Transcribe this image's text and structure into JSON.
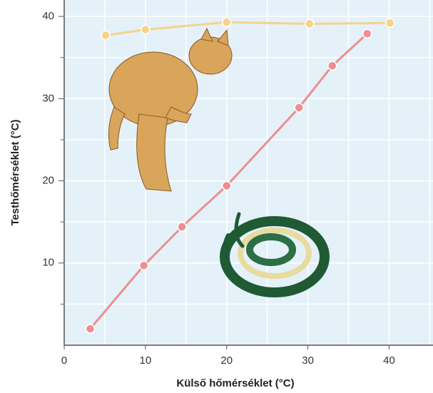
{
  "chart_data": {
    "type": "line",
    "x_label": "Külső hőmérséklet (°C)",
    "y_label": "Testhőmérséklet (°C)",
    "xlim": [
      0,
      45.4
    ],
    "ylim": [
      0,
      42
    ],
    "xticks": [
      0,
      10,
      20,
      30,
      40
    ],
    "yticks": [
      10,
      20,
      30,
      40
    ],
    "grid": true,
    "series": [
      {
        "color": "#f5d38a",
        "x": [
          5.1,
          10,
          20,
          30.2,
          40.1
        ],
        "values": [
          37.7,
          38.4,
          39.3,
          39.1,
          39.2
        ]
      },
      {
        "color": "#ec8f8f",
        "x": [
          3.2,
          9.8,
          14.5,
          20,
          28.9,
          33,
          37.3
        ],
        "values": [
          2.0,
          9.7,
          14.4,
          19.4,
          28.9,
          34.0,
          37.9
        ]
      }
    ]
  }
}
